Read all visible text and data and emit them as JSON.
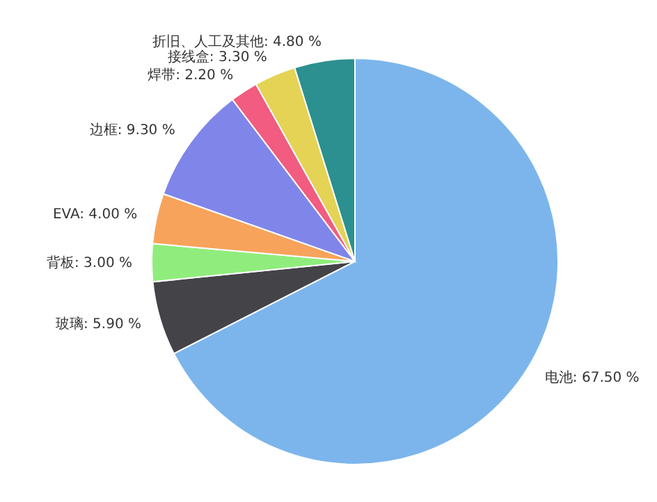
{
  "chart_data": {
    "type": "pie",
    "categories": [
      "电池",
      "玻璃",
      "背板",
      "EVA",
      "边框",
      "焊带",
      "接线盒",
      "折旧、人工及其他"
    ],
    "values": [
      67.5,
      5.9,
      3.0,
      4.0,
      9.3,
      2.2,
      3.3,
      4.8
    ],
    "colors": [
      "#7cb5ec",
      "#434348",
      "#90ed7d",
      "#f7a35c",
      "#8085e9",
      "#f15c80",
      "#e4d354",
      "#2b908f"
    ],
    "value_labels": [
      "67.50 %",
      "5.90 %",
      "3.00 %",
      "4.00 %",
      "9.30 %",
      "2.20 %",
      "3.30 %",
      "4.80 %"
    ]
  }
}
